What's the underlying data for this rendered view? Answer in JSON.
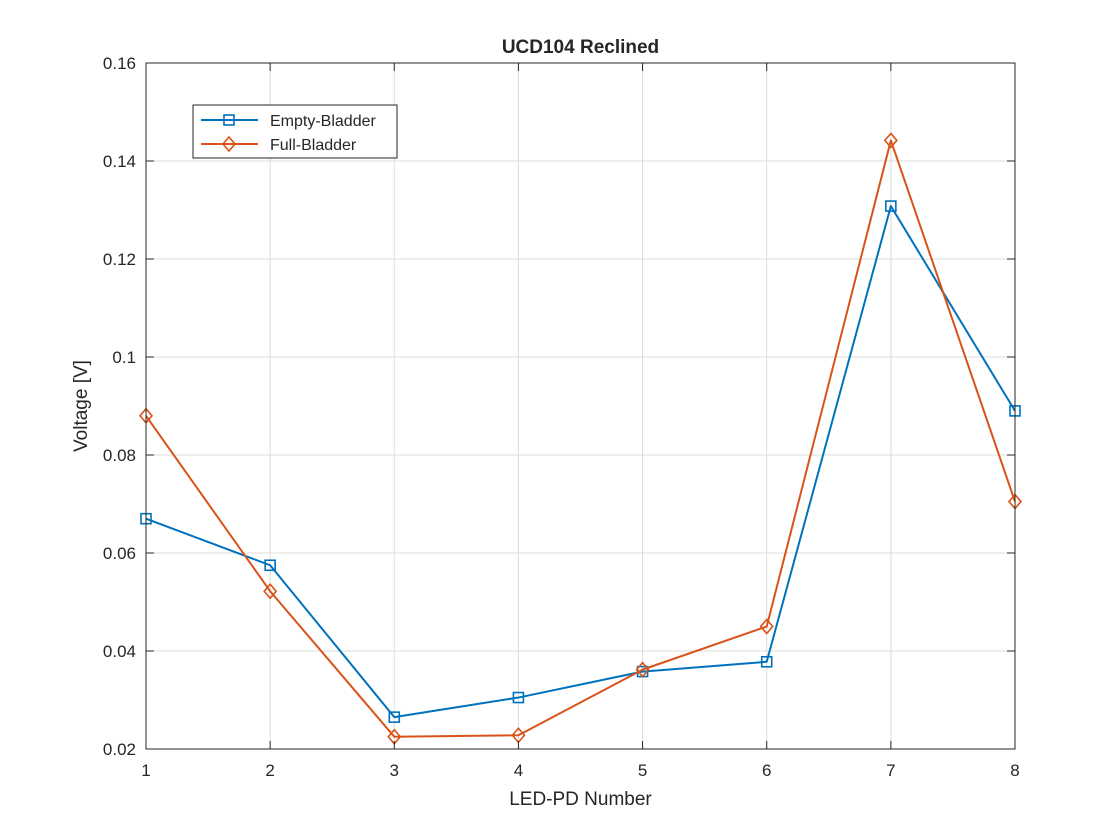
{
  "chart_data": {
    "type": "line",
    "title": "UCD104 Reclined",
    "xlabel": "LED-PD Number",
    "ylabel": "Voltage [V]",
    "xlim": [
      1,
      8
    ],
    "ylim": [
      0.02,
      0.16
    ],
    "x_ticks": [
      1,
      2,
      3,
      4,
      5,
      6,
      7,
      8
    ],
    "x_tick_labels": [
      "1",
      "2",
      "3",
      "4",
      "5",
      "6",
      "7",
      "8"
    ],
    "y_ticks": [
      0.02,
      0.04,
      0.06,
      0.08,
      0.1,
      0.12,
      0.14,
      0.16
    ],
    "y_tick_labels": [
      "0.02",
      "0.04",
      "0.06",
      "0.08",
      "0.1",
      "0.12",
      "0.14",
      "0.16"
    ],
    "grid": true,
    "legend_position": "top-left",
    "x": [
      1,
      2,
      3,
      4,
      5,
      6,
      7,
      8
    ],
    "series": [
      {
        "name": "Empty-Bladder",
        "color": "#0072BD",
        "marker": "square",
        "values": [
          0.067,
          0.0575,
          0.0265,
          0.0305,
          0.0358,
          0.0378,
          0.1308,
          0.089
        ]
      },
      {
        "name": "Full-Bladder",
        "color": "#D95319",
        "marker": "diamond",
        "values": [
          0.088,
          0.0522,
          0.0225,
          0.0228,
          0.0362,
          0.045,
          0.1442,
          0.0705
        ]
      }
    ]
  }
}
